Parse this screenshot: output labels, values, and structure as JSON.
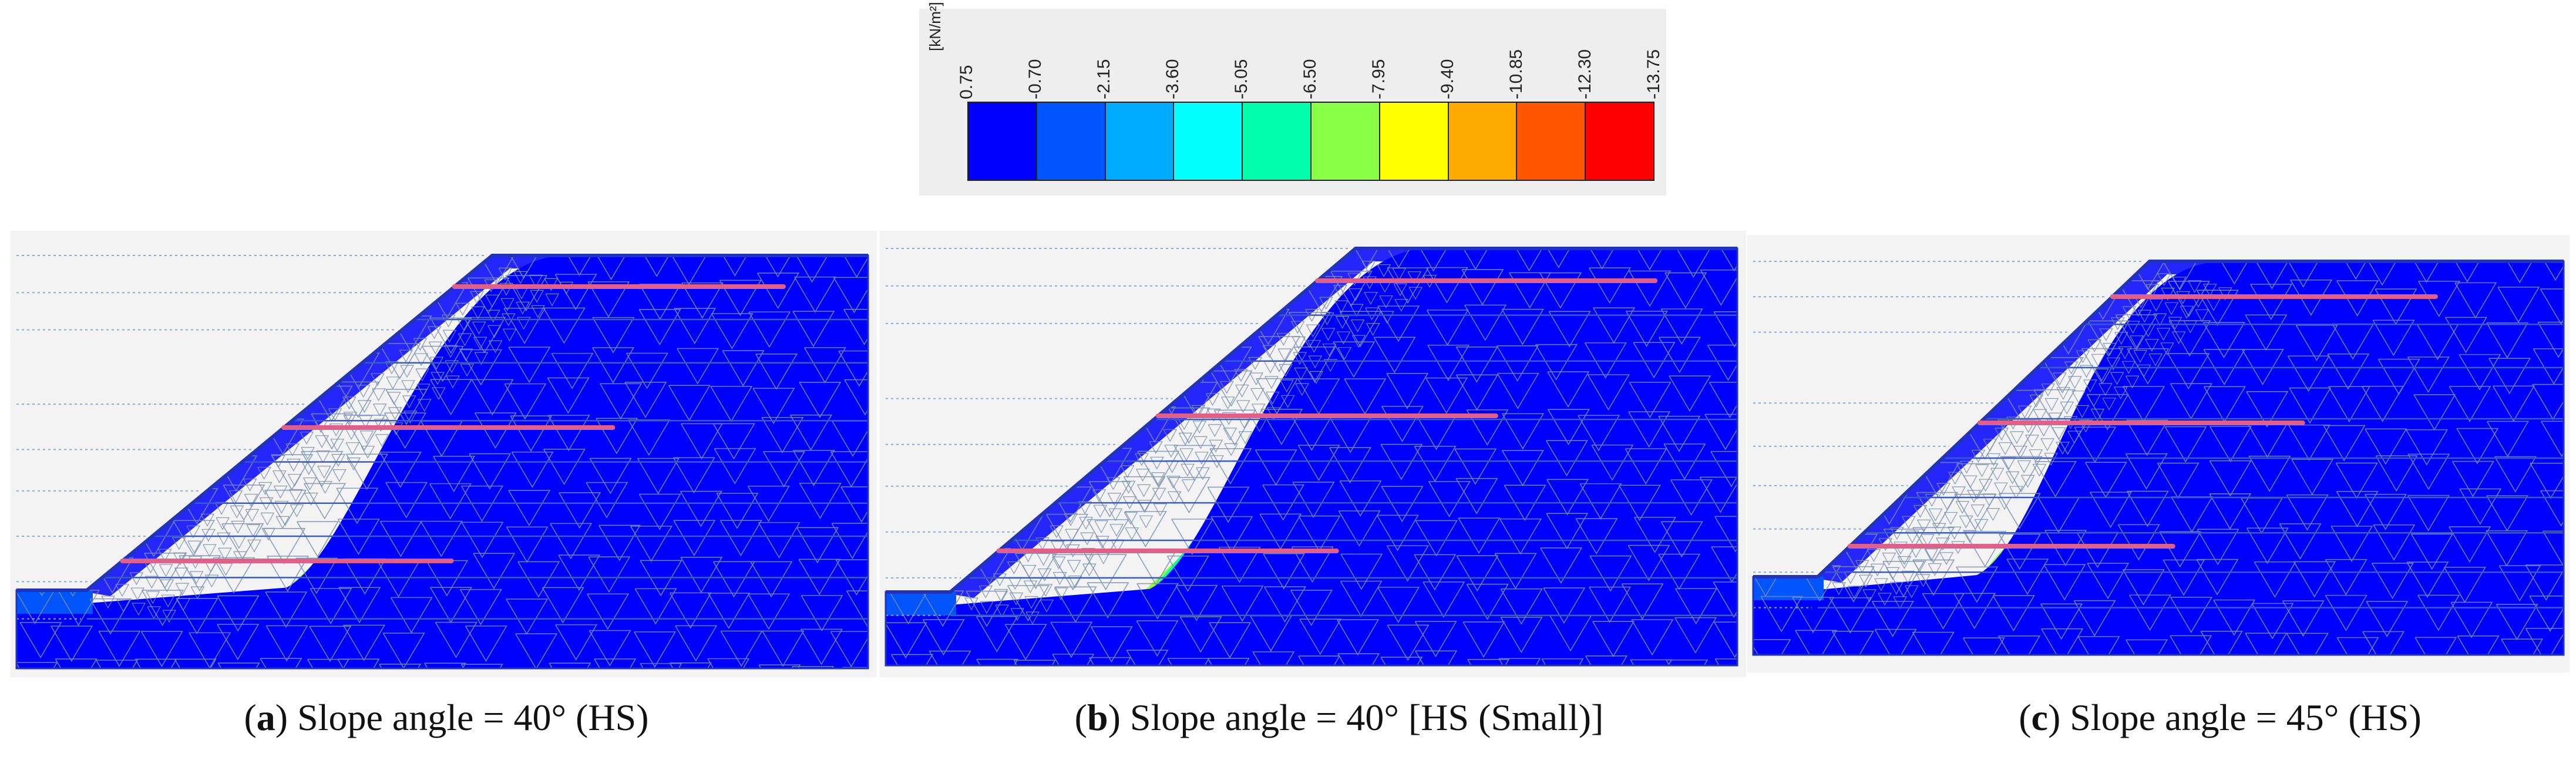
{
  "legend": {
    "unit": "[kN/m²]",
    "ticks": [
      "0.75",
      "-0.70",
      "-2.15",
      "-3.60",
      "-5.05",
      "-6.50",
      "-7.95",
      "-9.40",
      "-10.85",
      "-12.30",
      "-13.75"
    ],
    "colors": [
      "#0000ff",
      "#0055ff",
      "#00aaff",
      "#00ffff",
      "#00ffaa",
      "#88ff44",
      "#ffff00",
      "#ffaa00",
      "#ff5500",
      "#ff0000"
    ]
  },
  "panels": [
    {
      "id": "a",
      "letter": "a",
      "caption_text": " Slope angle = 40° (HS)",
      "slope_angle_deg": 40
    },
    {
      "id": "b",
      "letter": "b",
      "caption_text": " Slope angle = 40° [HS (Small)]",
      "slope_angle_deg": 40
    },
    {
      "id": "c",
      "letter": "c",
      "caption_text": " Slope angle = 45° (HS)",
      "slope_angle_deg": 45
    }
  ],
  "colors": {
    "mesh": "#7b8fb0",
    "reinforcement": "#e0608a",
    "boundary": "#2233bb",
    "panel_bg": "#f3f3f3"
  }
}
